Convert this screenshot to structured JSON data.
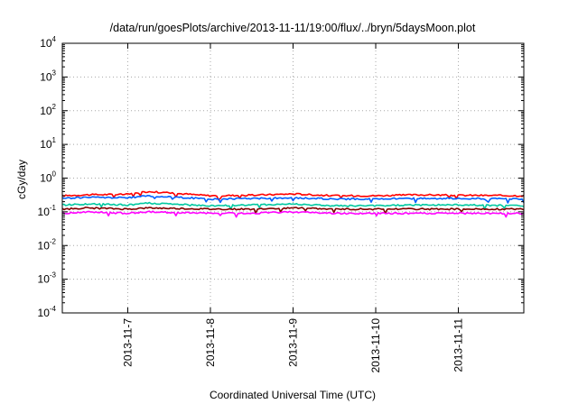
{
  "chart_data": {
    "type": "line",
    "title": "/data/run/goesPlots/archive/2013-11-11/19:00/flux/../bryn/5daysMoon.plot",
    "xlabel": "Coordinated Universal Time (UTC)",
    "ylabel": "cGy/day",
    "yscale": "log",
    "ylim": [
      0.0001,
      10000
    ],
    "xlim": [
      "2013-11-06 05:00",
      "2013-11-11 19:00"
    ],
    "grid": true,
    "legend": "none",
    "x_tick_labels": [
      "2013-11-7",
      "2013-11-8",
      "2013-11-9",
      "2013-11-10",
      "2013-11-11"
    ],
    "x_ticks": [
      "2013-11-07 00:00",
      "2013-11-08 00:00",
      "2013-11-09 00:00",
      "2013-11-10 00:00",
      "2013-11-11 00:00"
    ],
    "y_ticks": [
      {
        "base": "10",
        "exp": "-4"
      },
      {
        "base": "10",
        "exp": "-3"
      },
      {
        "base": "10",
        "exp": "-2"
      },
      {
        "base": "10",
        "exp": "-1"
      },
      {
        "base": "10",
        "exp": "0"
      },
      {
        "base": "10",
        "exp": "1"
      },
      {
        "base": "10",
        "exp": "2"
      },
      {
        "base": "10",
        "exp": "3"
      },
      {
        "base": "10",
        "exp": "4"
      }
    ],
    "series": [
      {
        "color": "#ff0000",
        "x": [
          "2013-11-06 05:00",
          "2013-11-06 12:00",
          "2013-11-07 00:00",
          "2013-11-07 06:00",
          "2013-11-08 00:00",
          "2013-11-08 12:00",
          "2013-11-09 00:00",
          "2013-11-09 12:00",
          "2013-11-10 00:00",
          "2013-11-10 12:00",
          "2013-11-11 00:00",
          "2013-11-11 19:00"
        ],
        "values": [
          0.3,
          0.32,
          0.33,
          0.4,
          0.3,
          0.31,
          0.34,
          0.3,
          0.3,
          0.32,
          0.31,
          0.3
        ]
      },
      {
        "color": "#0060ff",
        "x": [
          "2013-11-06 05:00",
          "2013-11-06 12:00",
          "2013-11-07 00:00",
          "2013-11-07 06:00",
          "2013-11-08 00:00",
          "2013-11-08 12:00",
          "2013-11-09 00:00",
          "2013-11-09 12:00",
          "2013-11-10 00:00",
          "2013-11-10 12:00",
          "2013-11-11 00:00",
          "2013-11-11 19:00"
        ],
        "values": [
          0.25,
          0.27,
          0.26,
          0.3,
          0.24,
          0.25,
          0.26,
          0.24,
          0.24,
          0.25,
          0.25,
          0.24
        ]
      },
      {
        "color": "#00c8a0",
        "x": [
          "2013-11-06 05:00",
          "2013-11-06 12:00",
          "2013-11-07 00:00",
          "2013-11-07 06:00",
          "2013-11-08 00:00",
          "2013-11-08 12:00",
          "2013-11-09 00:00",
          "2013-11-09 12:00",
          "2013-11-10 00:00",
          "2013-11-10 12:00",
          "2013-11-11 00:00",
          "2013-11-11 19:00"
        ],
        "values": [
          0.16,
          0.17,
          0.16,
          0.18,
          0.15,
          0.16,
          0.17,
          0.15,
          0.15,
          0.16,
          0.16,
          0.15
        ]
      },
      {
        "color": "#800000",
        "x": [
          "2013-11-06 05:00",
          "2013-11-06 12:00",
          "2013-11-07 00:00",
          "2013-11-07 06:00",
          "2013-11-08 00:00",
          "2013-11-08 12:00",
          "2013-11-09 00:00",
          "2013-11-09 12:00",
          "2013-11-10 00:00",
          "2013-11-10 12:00",
          "2013-11-11 00:00",
          "2013-11-11 19:00"
        ],
        "values": [
          0.12,
          0.13,
          0.12,
          0.13,
          0.12,
          0.12,
          0.13,
          0.12,
          0.12,
          0.12,
          0.12,
          0.12
        ]
      },
      {
        "color": "#ff00ff",
        "x": [
          "2013-11-06 05:00",
          "2013-11-06 12:00",
          "2013-11-07 00:00",
          "2013-11-07 06:00",
          "2013-11-08 00:00",
          "2013-11-08 12:00",
          "2013-11-09 00:00",
          "2013-11-09 12:00",
          "2013-11-10 00:00",
          "2013-11-10 12:00",
          "2013-11-11 00:00",
          "2013-11-11 19:00"
        ],
        "values": [
          0.09,
          0.1,
          0.09,
          0.1,
          0.09,
          0.09,
          0.1,
          0.09,
          0.09,
          0.09,
          0.09,
          0.09
        ]
      }
    ]
  }
}
